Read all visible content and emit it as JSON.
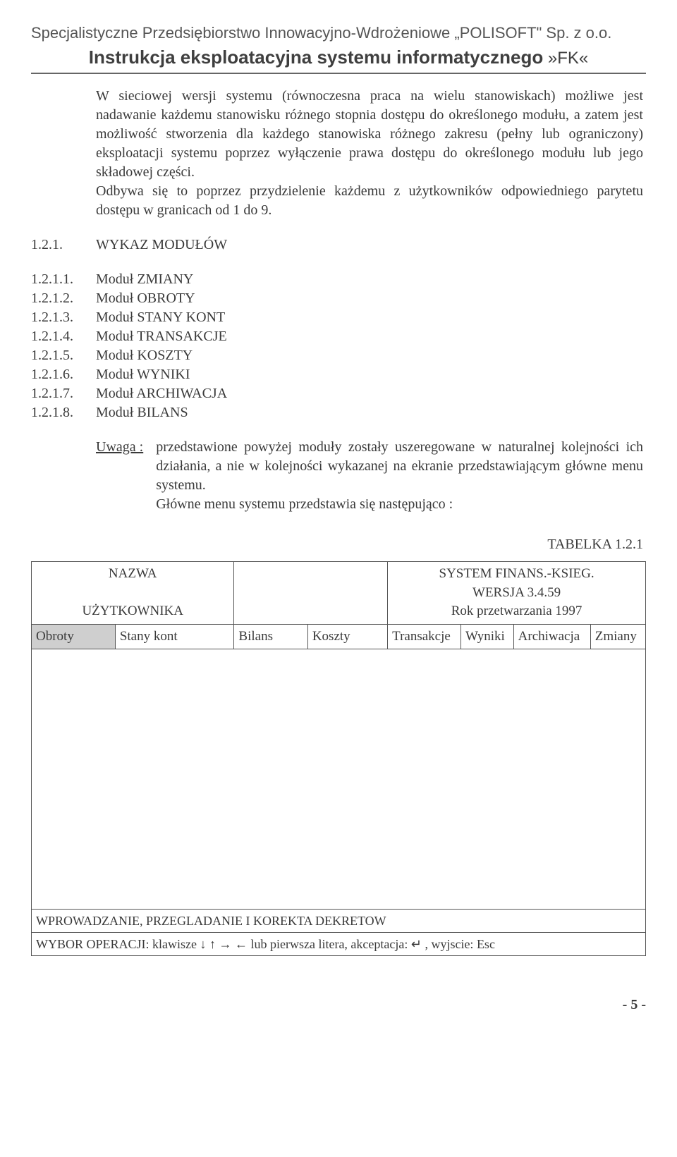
{
  "header": {
    "company": "Specjalistyczne Przedsiębiorstwo Innowacyjno-Wdrożeniowe „POLISOFT\" Sp. z o.o.",
    "manual_title_main": "Instrukcja eksploatacyjna systemu informatycznego",
    "manual_title_suffix": " »FK«"
  },
  "body": {
    "para1": "W sieciowej wersji systemu (równoczesna praca na wielu stanowiskach) możliwe jest nadawanie każdemu stanowisku różnego stopnia dostępu do określonego modułu, a zatem jest możliwość stworzenia dla każdego stanowiska różnego zakresu (pełny lub ograniczony) eksploatacji systemu poprzez wyłączenie prawa dostępu do określonego modułu lub jego składowej części.",
    "para2": "Odbywa się to poprzez przydzielenie każdemu z użytkowników odpowiedniego parytetu dostępu w granicach od 1 do 9.",
    "section_num": "1.2.1.",
    "section_title": "WYKAZ  MODUŁÓW",
    "modules": [
      {
        "num": "1.2.1.1.",
        "label": "Moduł  ZMIANY"
      },
      {
        "num": "1.2.1.2.",
        "label": "Moduł  OBROTY"
      },
      {
        "num": "1.2.1.3.",
        "label": "Moduł  STANY KONT"
      },
      {
        "num": "1.2.1.4.",
        "label": "Moduł  TRANSAKCJE"
      },
      {
        "num": "1.2.1.5.",
        "label": "Moduł  KOSZTY"
      },
      {
        "num": "1.2.1.6.",
        "label": "Moduł  WYNIKI"
      },
      {
        "num": "1.2.1.7.",
        "label": "Moduł  ARCHIWACJA"
      },
      {
        "num": "1.2.1.8.",
        "label": "Moduł  BILANS"
      }
    ],
    "uwaga_label": "Uwaga :",
    "uwaga_text": "przedstawione powyżej moduły zostały uszeregowane w naturalnej kolejności ich działania, a nie w kolejności wykazanej na ekranie przedstawiającym główne menu systemu.",
    "uwaga_text2": "Główne menu systemu przedstawia się następująco :",
    "tabelka_label": "TABELKA  1.2.1"
  },
  "screen": {
    "header_left_line1": "NAZWA",
    "header_left_line2": "UŻYTKOWNIKA",
    "header_right_line1": "SYSTEM FINANS.-KSIEG.",
    "header_right_line2": "WERSJA   3.4.59",
    "header_right_line3": "Rok przetwarzania 1997",
    "menu": [
      "Obroty",
      "Stany kont",
      "Bilans",
      "Koszty",
      "Transakcje",
      "Wyniki",
      "Archiwacja",
      "Zmiany"
    ],
    "menu_selected_index": 0,
    "status": "WPROWADZANIE, PRZEGLADANIE I KOREKTA DEKRETOW",
    "hint": "WYBOR OPERACJI:  klawisze  ↓ ↑ → ←  lub pierwsza litera,  akceptacja: ↵ ,  wyjscie: Esc"
  },
  "page_number": "- 5 -"
}
